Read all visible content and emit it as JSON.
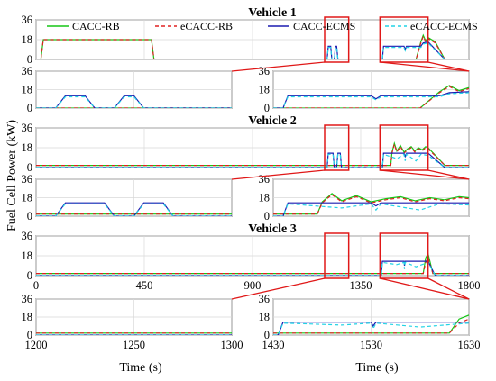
{
  "chart_data": {
    "type": "line",
    "ylabel": "Fuel Cell Power (kW)",
    "xlabel": "Time (s)",
    "legend": {
      "placement": "top",
      "entries": [
        "CACC-RB",
        "eCACC-RB",
        "CACC-ECMS",
        "eCACC-ECMS"
      ]
    },
    "colors": {
      "CACC-RB": "#16c616",
      "eCACC-RB": "#e02020",
      "CACC-ECMS": "#1b1bb0",
      "eCACC-ECMS": "#22d3e6",
      "zoom": "#e01818"
    },
    "ylim": [
      0,
      36
    ],
    "yticks": [
      "0",
      "18",
      "36"
    ],
    "full_xlim": [
      0,
      1800
    ],
    "full_xticks": [
      "0",
      "450",
      "900",
      "1350",
      "1800"
    ],
    "zoom_left_xlim": [
      1200,
      1300
    ],
    "zoom_left_xticks": [
      "1200",
      "1250",
      "1300"
    ],
    "zoom_right_xlim": [
      1430,
      1630
    ],
    "zoom_right_xticks": [
      "1430",
      "1530",
      "1630"
    ],
    "zoom_windows": [
      [
        1200,
        1300
      ],
      [
        1430,
        1630
      ]
    ],
    "vehicles": [
      {
        "title": "Vehicle 1",
        "notes": "RB strategies hold 18 kW from ~20 s to ~480 s; ECMS strategies show intermittent ~12 kW bursts; all lines rise to ~18-22 kW near 1600-1630 s",
        "series": {
          "CACC-RB": [
            [
              0,
              0
            ],
            [
              20,
              0
            ],
            [
              30,
              18
            ],
            [
              480,
              18
            ],
            [
              490,
              0
            ],
            [
              1580,
              0
            ],
            [
              1600,
              16
            ],
            [
              1610,
              22
            ],
            [
              1620,
              17
            ],
            [
              1630,
              20
            ],
            [
              1660,
              16
            ],
            [
              1700,
              0
            ],
            [
              1800,
              0
            ]
          ],
          "eCACC-RB": [
            [
              0,
              0
            ],
            [
              20,
              0
            ],
            [
              30,
              18
            ],
            [
              480,
              18
            ],
            [
              490,
              0
            ],
            [
              1580,
              0
            ],
            [
              1600,
              15
            ],
            [
              1610,
              21
            ],
            [
              1620,
              16
            ],
            [
              1630,
              19
            ],
            [
              1660,
              15
            ],
            [
              1700,
              0
            ],
            [
              1800,
              0
            ]
          ],
          "CACC-ECMS": [
            [
              0,
              0
            ],
            [
              1210,
              0
            ],
            [
              1215,
              12
            ],
            [
              1225,
              12
            ],
            [
              1230,
              0
            ],
            [
              1240,
              0
            ],
            [
              1245,
              12
            ],
            [
              1250,
              12
            ],
            [
              1255,
              0
            ],
            [
              1440,
              0
            ],
            [
              1445,
              12
            ],
            [
              1530,
              12
            ],
            [
              1535,
              9
            ],
            [
              1540,
              12
            ],
            [
              1600,
              12
            ],
            [
              1610,
              15
            ],
            [
              1630,
              16
            ],
            [
              1700,
              0
            ],
            [
              1800,
              0
            ]
          ],
          "eCACC-ECMS": [
            [
              0,
              0
            ],
            [
              1210,
              0
            ],
            [
              1215,
              11
            ],
            [
              1225,
              11
            ],
            [
              1230,
              0
            ],
            [
              1240,
              0
            ],
            [
              1245,
              11
            ],
            [
              1250,
              11
            ],
            [
              1255,
              0
            ],
            [
              1440,
              0
            ],
            [
              1445,
              11
            ],
            [
              1530,
              11
            ],
            [
              1535,
              8
            ],
            [
              1540,
              11
            ],
            [
              1600,
              11
            ],
            [
              1610,
              14
            ],
            [
              1630,
              15
            ],
            [
              1700,
              0
            ],
            [
              1800,
              0
            ]
          ]
        }
      },
      {
        "title": "Vehicle 2",
        "notes": "RB strategies stay near 2 kW until ~1480 s, then fluctuate 14-24 kW; ECMS strategies show ~12 kW plateaus",
        "series": {
          "CACC-RB": [
            [
              0,
              2
            ],
            [
              1475,
              2
            ],
            [
              1480,
              14
            ],
            [
              1490,
              22
            ],
            [
              1500,
              15
            ],
            [
              1515,
              20
            ],
            [
              1530,
              14
            ],
            [
              1545,
              17
            ],
            [
              1560,
              19
            ],
            [
              1575,
              15
            ],
            [
              1590,
              18
            ],
            [
              1605,
              16
            ],
            [
              1620,
              19
            ],
            [
              1630,
              18
            ],
            [
              1700,
              2
            ],
            [
              1800,
              2
            ]
          ],
          "eCACC-RB": [
            [
              0,
              2
            ],
            [
              1475,
              2
            ],
            [
              1480,
              13
            ],
            [
              1490,
              21
            ],
            [
              1500,
              14
            ],
            [
              1515,
              19
            ],
            [
              1530,
              13
            ],
            [
              1545,
              16
            ],
            [
              1560,
              18
            ],
            [
              1575,
              14
            ],
            [
              1590,
              17
            ],
            [
              1605,
              15
            ],
            [
              1620,
              18
            ],
            [
              1630,
              17
            ],
            [
              1700,
              2
            ],
            [
              1800,
              2
            ]
          ],
          "CACC-ECMS": [
            [
              0,
              0
            ],
            [
              1210,
              0
            ],
            [
              1215,
              13
            ],
            [
              1235,
              13
            ],
            [
              1240,
              0
            ],
            [
              1250,
              0
            ],
            [
              1255,
              13
            ],
            [
              1265,
              13
            ],
            [
              1270,
              0
            ],
            [
              1440,
              0
            ],
            [
              1445,
              13
            ],
            [
              1530,
              13
            ],
            [
              1535,
              10
            ],
            [
              1540,
              13
            ],
            [
              1630,
              13
            ],
            [
              1700,
              0
            ],
            [
              1800,
              0
            ]
          ],
          "eCACC-ECMS": [
            [
              0,
              0
            ],
            [
              1210,
              0
            ],
            [
              1215,
              12
            ],
            [
              1235,
              12
            ],
            [
              1240,
              0
            ],
            [
              1250,
              0
            ],
            [
              1255,
              12
            ],
            [
              1265,
              12
            ],
            [
              1270,
              0
            ],
            [
              1440,
              0
            ],
            [
              1445,
              12
            ],
            [
              1500,
              8
            ],
            [
              1530,
              12
            ],
            [
              1535,
              6
            ],
            [
              1540,
              12
            ],
            [
              1580,
              6
            ],
            [
              1600,
              12
            ],
            [
              1630,
              11
            ],
            [
              1700,
              0
            ],
            [
              1800,
              0
            ]
          ]
        }
      },
      {
        "title": "Vehicle 3",
        "notes": "RB strategies remain near 2 kW; ECMS strategies hold ~13 kW between ~1440 s and ~1630 s",
        "series": {
          "CACC-RB": [
            [
              0,
              2
            ],
            [
              1610,
              2
            ],
            [
              1620,
              16
            ],
            [
              1630,
              20
            ],
            [
              1650,
              2
            ],
            [
              1800,
              2
            ]
          ],
          "eCACC-RB": [
            [
              0,
              2
            ],
            [
              1610,
              2
            ],
            [
              1620,
              12
            ],
            [
              1630,
              16
            ],
            [
              1650,
              2
            ],
            [
              1800,
              2
            ]
          ],
          "CACC-ECMS": [
            [
              0,
              0
            ],
            [
              1435,
              0
            ],
            [
              1440,
              13
            ],
            [
              1530,
              13
            ],
            [
              1532,
              9
            ],
            [
              1535,
              13
            ],
            [
              1630,
              13
            ],
            [
              1660,
              0
            ],
            [
              1800,
              0
            ]
          ],
          "eCACC-ECMS": [
            [
              0,
              0
            ],
            [
              1435,
              0
            ],
            [
              1440,
              12
            ],
            [
              1500,
              10
            ],
            [
              1530,
              12
            ],
            [
              1532,
              6
            ],
            [
              1535,
              12
            ],
            [
              1580,
              8
            ],
            [
              1630,
              12
            ],
            [
              1660,
              0
            ],
            [
              1800,
              0
            ]
          ]
        }
      }
    ]
  }
}
